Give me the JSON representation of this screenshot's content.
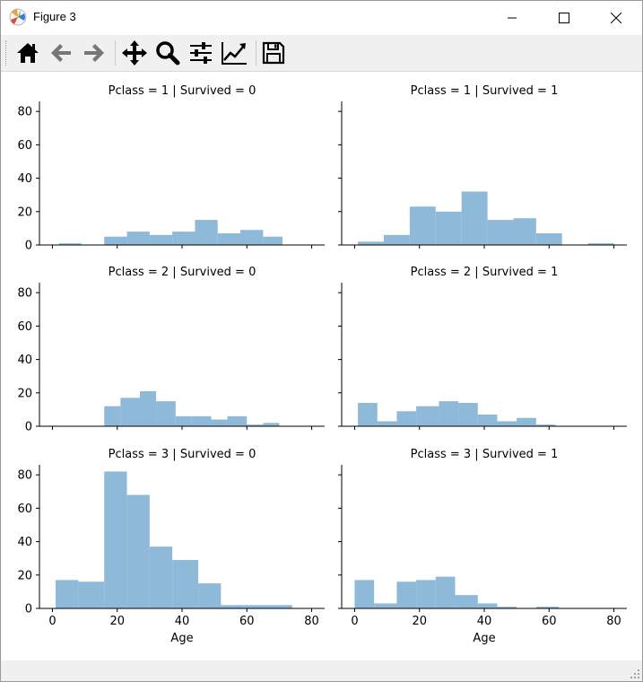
{
  "window": {
    "title": "Figure 3"
  },
  "icons": {
    "app": "matplotlib-icon",
    "minimize": "minimize-icon",
    "maximize": "maximize-icon",
    "close": "close-icon"
  },
  "toolbar": {
    "buttons": [
      "home-icon",
      "back-arrow-icon",
      "forward-arrow-icon",
      "pan-icon",
      "zoom-icon",
      "subplots-config-icon",
      "edit-axes-icon",
      "save-icon"
    ]
  },
  "colors": {
    "bar": "#8fb9d9",
    "axis": "#000000"
  },
  "chart_data": {
    "type": "bar",
    "xlabel": "Age",
    "xticks": [
      0,
      20,
      40,
      60,
      80
    ],
    "yticks": [
      0,
      20,
      40,
      60,
      80
    ],
    "xlim": [
      -4,
      84
    ],
    "ylim": [
      0,
      86
    ],
    "grid": false,
    "panels": [
      {
        "title": "Pclass = 1 | Survived = 0",
        "bins": [
          [
            2,
            9,
            1
          ],
          [
            16,
            23,
            5
          ],
          [
            23,
            30,
            8
          ],
          [
            30,
            37,
            6
          ],
          [
            37,
            44,
            8
          ],
          [
            44,
            51,
            15
          ],
          [
            51,
            58,
            7
          ],
          [
            58,
            65,
            9
          ],
          [
            65,
            71,
            5
          ]
        ]
      },
      {
        "title": "Pclass = 1 | Survived = 1",
        "bins": [
          [
            1,
            9,
            2
          ],
          [
            9,
            17,
            6
          ],
          [
            17,
            25,
            23
          ],
          [
            25,
            33,
            20
          ],
          [
            33,
            41,
            32
          ],
          [
            41,
            49,
            15
          ],
          [
            49,
            56,
            16
          ],
          [
            56,
            64,
            7
          ],
          [
            72,
            80,
            1
          ]
        ]
      },
      {
        "title": "Pclass = 2 | Survived = 0",
        "bins": [
          [
            16,
            21,
            12
          ],
          [
            21,
            27,
            17
          ],
          [
            27,
            32,
            21
          ],
          [
            32,
            38,
            15
          ],
          [
            38,
            43,
            6
          ],
          [
            43,
            49,
            6
          ],
          [
            49,
            54,
            4
          ],
          [
            54,
            60,
            6
          ],
          [
            60,
            65,
            1
          ],
          [
            65,
            70,
            2
          ]
        ]
      },
      {
        "title": "Pclass = 2 | Survived = 1",
        "bins": [
          [
            1,
            7,
            14
          ],
          [
            7,
            13,
            3
          ],
          [
            13,
            19,
            9
          ],
          [
            19,
            26,
            12
          ],
          [
            26,
            32,
            15
          ],
          [
            32,
            38,
            14
          ],
          [
            38,
            44,
            7
          ],
          [
            44,
            50,
            3
          ],
          [
            50,
            56,
            5
          ],
          [
            56,
            62,
            1
          ]
        ]
      },
      {
        "title": "Pclass = 3 | Survived = 0",
        "bins": [
          [
            1,
            8,
            17
          ],
          [
            8,
            16,
            16
          ],
          [
            16,
            23,
            82
          ],
          [
            23,
            30,
            68
          ],
          [
            30,
            37,
            37
          ],
          [
            37,
            45,
            29
          ],
          [
            45,
            52,
            15
          ],
          [
            52,
            59,
            2
          ],
          [
            59,
            66,
            2
          ],
          [
            66,
            74,
            2
          ]
        ]
      },
      {
        "title": "Pclass = 3 | Survived = 1",
        "bins": [
          [
            0,
            6,
            17
          ],
          [
            6,
            13,
            3
          ],
          [
            13,
            19,
            16
          ],
          [
            19,
            25,
            17
          ],
          [
            25,
            31,
            19
          ],
          [
            31,
            38,
            8
          ],
          [
            38,
            44,
            3
          ],
          [
            44,
            50,
            1
          ],
          [
            50,
            56,
            0
          ],
          [
            56,
            63,
            1
          ]
        ]
      }
    ]
  }
}
